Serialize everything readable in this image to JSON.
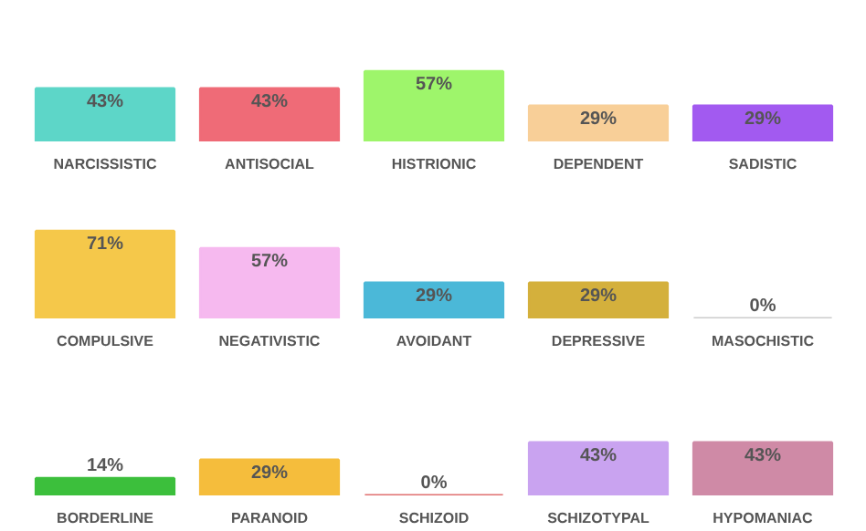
{
  "chart_data": [
    {
      "type": "bar",
      "categories": [
        "NARCISSISTIC",
        "ANTISOCIAL",
        "HISTRIONIC",
        "DEPENDENT",
        "SADISTIC"
      ],
      "values": [
        43,
        43,
        57,
        29,
        29
      ],
      "value_labels": [
        "43%",
        "43%",
        "57%",
        "29%",
        "29%"
      ],
      "colors": [
        "#5dd6c8",
        "#ef6b77",
        "#9ef56b",
        "#f8cf98",
        "#a25af0"
      ],
      "tick_labels": "x",
      "grid": false
    },
    {
      "type": "bar",
      "categories": [
        "COMPULSIVE",
        "NEGATIVISTIC",
        "AVOIDANT",
        "DEPRESSIVE",
        "MASOCHISTIC"
      ],
      "values": [
        71,
        57,
        29,
        29,
        0
      ],
      "value_labels": [
        "71%",
        "57%",
        "29%",
        "29%",
        "0%"
      ],
      "colors": [
        "#f5c84a",
        "#f6b9ef",
        "#4bb8d8",
        "#d4b03c",
        "#cccccc"
      ],
      "tick_labels": "x",
      "grid": false
    },
    {
      "type": "bar",
      "categories": [
        "BORDERLINE",
        "PARANOID",
        "SCHIZOID",
        "SCHIZOTYPAL",
        "HYPOMANIAC"
      ],
      "values": [
        14,
        29,
        0,
        43,
        43
      ],
      "value_labels": [
        "14%",
        "29%",
        "0%",
        "43%",
        "43%"
      ],
      "colors": [
        "#3cbf3c",
        "#f5bd3c",
        "#e07070",
        "#c9a3f0",
        "#cf8aa6"
      ],
      "tick_labels": "x",
      "grid": false
    }
  ]
}
